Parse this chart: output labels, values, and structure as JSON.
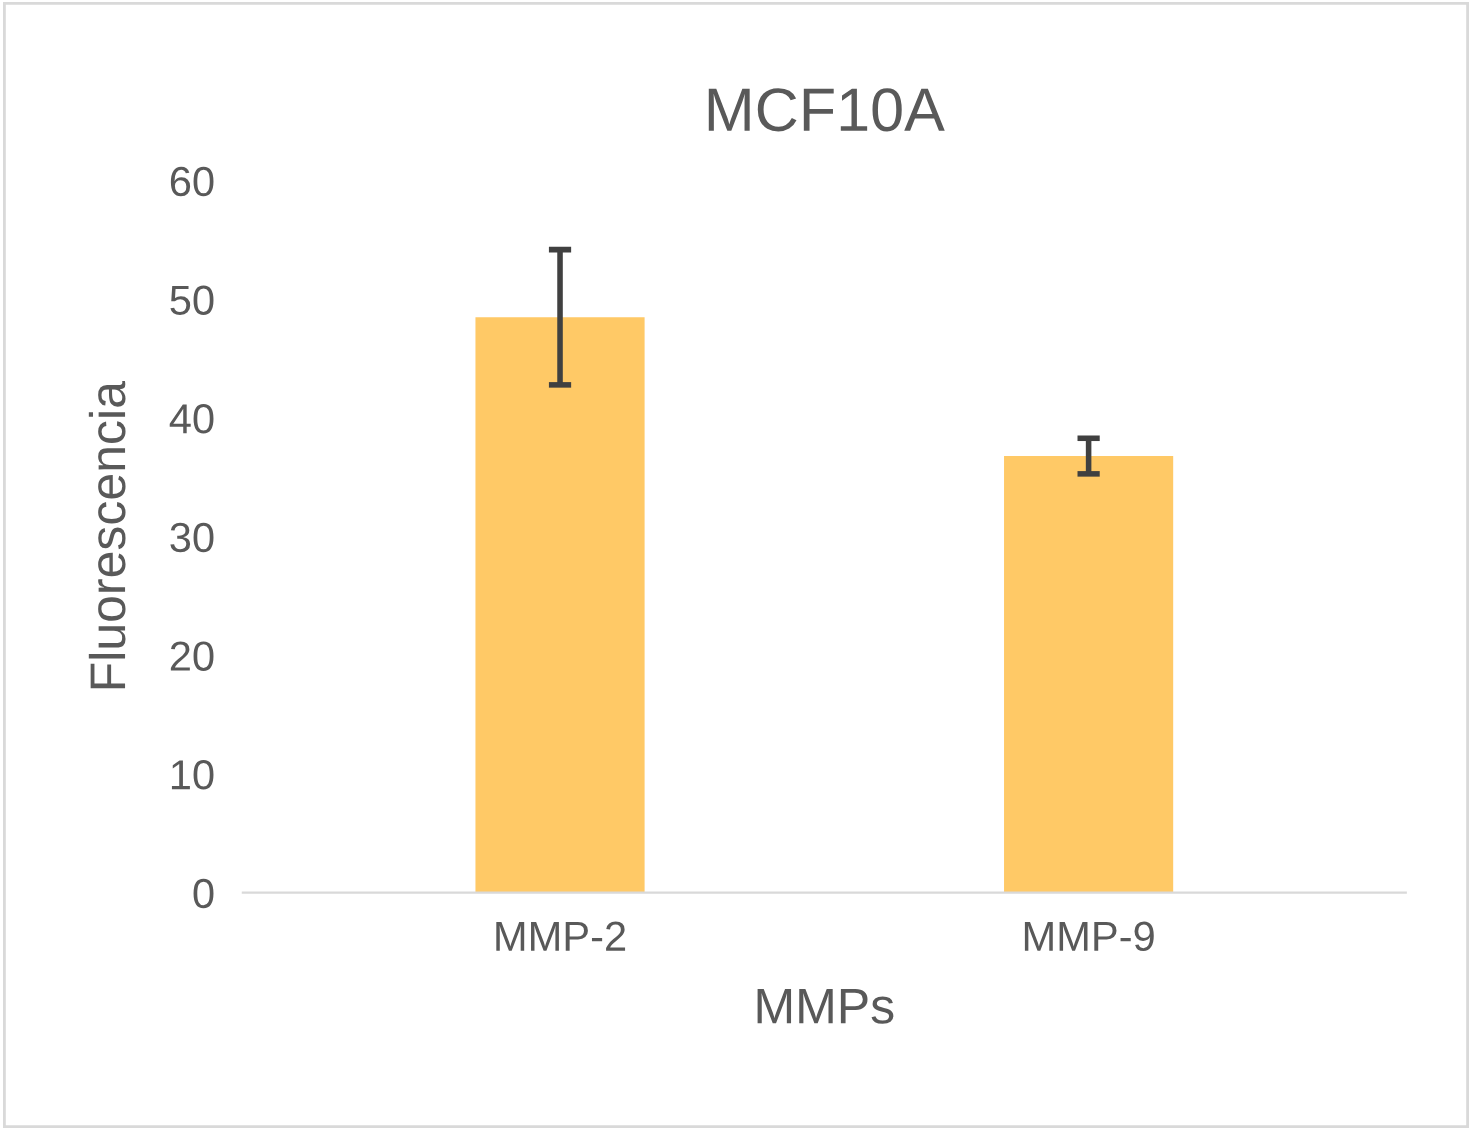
{
  "chart_data": {
    "type": "bar",
    "title": "MCF10A",
    "xlabel": "MMPs",
    "ylabel": "Fluorescencia",
    "categories": [
      "MMP-2",
      "MMP-9"
    ],
    "values": [
      48.5,
      36.8
    ],
    "errors": [
      5.7,
      1.5
    ],
    "color": "#ffc966",
    "ylim": [
      0,
      60
    ],
    "yticks": [
      0,
      10,
      20,
      30,
      40,
      50,
      60
    ],
    "grid": false,
    "legend": false
  }
}
